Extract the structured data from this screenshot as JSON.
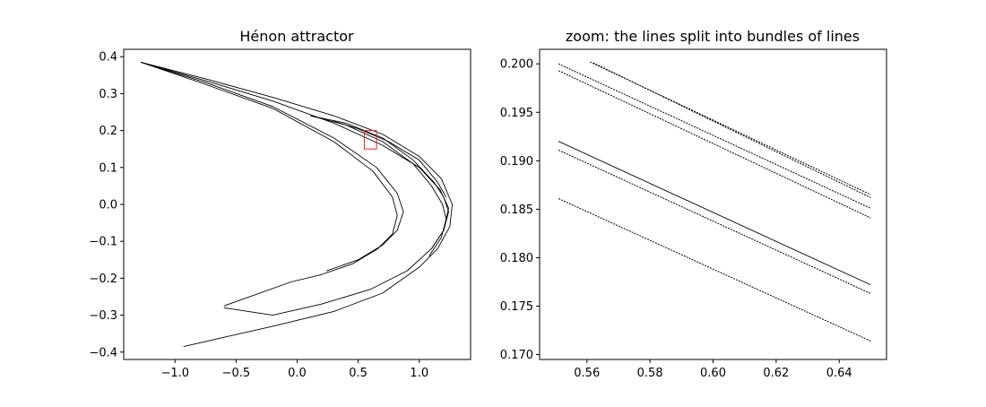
{
  "chart_data": [
    {
      "type": "line",
      "title": "Hénon attractor",
      "xlabel": "",
      "ylabel": "",
      "xlim": [
        -1.42,
        1.42
      ],
      "ylim": [
        -0.42,
        0.42
      ],
      "xticks": [
        -1.0,
        -0.5,
        0.0,
        0.5,
        1.0
      ],
      "xtick_labels": [
        "−1.0",
        "−0.5",
        "0.0",
        "0.5",
        "1.0"
      ],
      "yticks": [
        0.4,
        0.3,
        0.2,
        0.1,
        0.0,
        -0.1,
        -0.2,
        -0.3,
        -0.4
      ],
      "ytick_labels": [
        "0.4",
        "0.3",
        "0.2",
        "0.1",
        "0.0",
        "−0.1",
        "−0.2",
        "−0.3",
        "−0.4"
      ],
      "grid": false,
      "line_color": "#000000",
      "highlight_rect": {
        "x0": 0.55,
        "x1": 0.65,
        "y0": 0.15,
        "y1": 0.2,
        "color": "#d62728"
      },
      "series": [
        {
          "x": [
            -1.28,
            -0.75,
            -0.2,
            0.3,
            0.7,
            1.0,
            1.18,
            1.27,
            1.25,
            1.15,
            1.0,
            0.7,
            0.3,
            -0.2,
            -0.6,
            -0.93
          ],
          "y": [
            0.385,
            0.34,
            0.29,
            0.24,
            0.19,
            0.13,
            0.07,
            0.0,
            -0.06,
            -0.12,
            -0.17,
            -0.24,
            -0.29,
            -0.33,
            -0.36,
            -0.385
          ]
        },
        {
          "x": [
            -1.28,
            -0.75,
            -0.2,
            0.3,
            0.7,
            1.0,
            1.17,
            1.24,
            1.2,
            1.1,
            0.9,
            0.6,
            0.2,
            -0.2,
            -0.6
          ],
          "y": [
            0.385,
            0.335,
            0.28,
            0.22,
            0.16,
            0.1,
            0.04,
            -0.01,
            -0.07,
            -0.12,
            -0.18,
            -0.23,
            -0.27,
            -0.3,
            -0.28
          ]
        },
        {
          "x": [
            -1.28,
            -0.75,
            -0.2,
            0.3,
            0.65,
            0.82,
            0.87,
            0.82,
            0.7,
            0.5,
            0.24
          ],
          "y": [
            0.385,
            0.33,
            0.265,
            0.18,
            0.1,
            0.03,
            -0.02,
            -0.07,
            -0.11,
            -0.15,
            -0.18
          ]
        },
        {
          "x": [
            -1.28,
            -0.75,
            -0.2,
            0.3,
            0.62,
            0.78,
            0.82,
            0.78,
            0.66,
            0.46,
            0.2,
            -0.05,
            -0.6
          ],
          "y": [
            0.385,
            0.325,
            0.26,
            0.17,
            0.09,
            0.02,
            -0.03,
            -0.08,
            -0.12,
            -0.16,
            -0.19,
            -0.21,
            -0.275
          ]
        },
        {
          "x": [
            0.11,
            0.4,
            0.7,
            0.95,
            1.12,
            1.2,
            1.24,
            1.2,
            1.1
          ],
          "y": [
            0.24,
            0.22,
            0.18,
            0.12,
            0.06,
            0.02,
            -0.02,
            -0.07,
            -0.12
          ]
        },
        {
          "x": [
            0.11,
            0.4,
            0.7,
            0.95,
            1.1,
            1.19,
            1.22,
            1.18,
            1.08
          ],
          "y": [
            0.24,
            0.215,
            0.17,
            0.11,
            0.05,
            0.0,
            -0.04,
            -0.09,
            -0.14
          ]
        },
        {
          "x": [
            0.3,
            0.5,
            0.75,
            1.0,
            1.15,
            1.22
          ],
          "y": [
            0.225,
            0.205,
            0.17,
            0.12,
            0.06,
            0.02
          ]
        }
      ]
    },
    {
      "type": "line",
      "title": "zoom: the lines split into bundles of lines",
      "xlabel": "",
      "ylabel": "",
      "xlim": [
        0.545,
        0.655
      ],
      "ylim": [
        0.1695,
        0.2015
      ],
      "xticks": [
        0.56,
        0.58,
        0.6,
        0.62,
        0.64
      ],
      "xtick_labels": [
        "0.56",
        "0.58",
        "0.60",
        "0.62",
        "0.64"
      ],
      "yticks": [
        0.2,
        0.195,
        0.19,
        0.185,
        0.18,
        0.175,
        0.17
      ],
      "ytick_labels": [
        "0.200",
        "0.195",
        "0.190",
        "0.185",
        "0.180",
        "0.175",
        "0.170"
      ],
      "grid": false,
      "line_color": "#000000",
      "series": [
        {
          "x": [
            0.561,
            0.65
          ],
          "y": [
            0.2002,
            0.1865
          ],
          "style": "dotted"
        },
        {
          "x": [
            0.562,
            0.65
          ],
          "y": [
            0.2001,
            0.1862
          ],
          "style": "dotted"
        },
        {
          "x": [
            0.551,
            0.65
          ],
          "y": [
            0.2,
            0.1851
          ],
          "style": "dotted"
        },
        {
          "x": [
            0.551,
            0.65
          ],
          "y": [
            0.1993,
            0.1841
          ],
          "style": "dotted"
        },
        {
          "x": [
            0.551,
            0.65
          ],
          "y": [
            0.192,
            0.1772
          ],
          "style": "solid"
        },
        {
          "x": [
            0.551,
            0.65
          ],
          "y": [
            0.1911,
            0.1763
          ],
          "style": "dotted"
        },
        {
          "x": [
            0.551,
            0.65
          ],
          "y": [
            0.1861,
            0.1714
          ],
          "style": "dotted"
        }
      ]
    }
  ]
}
